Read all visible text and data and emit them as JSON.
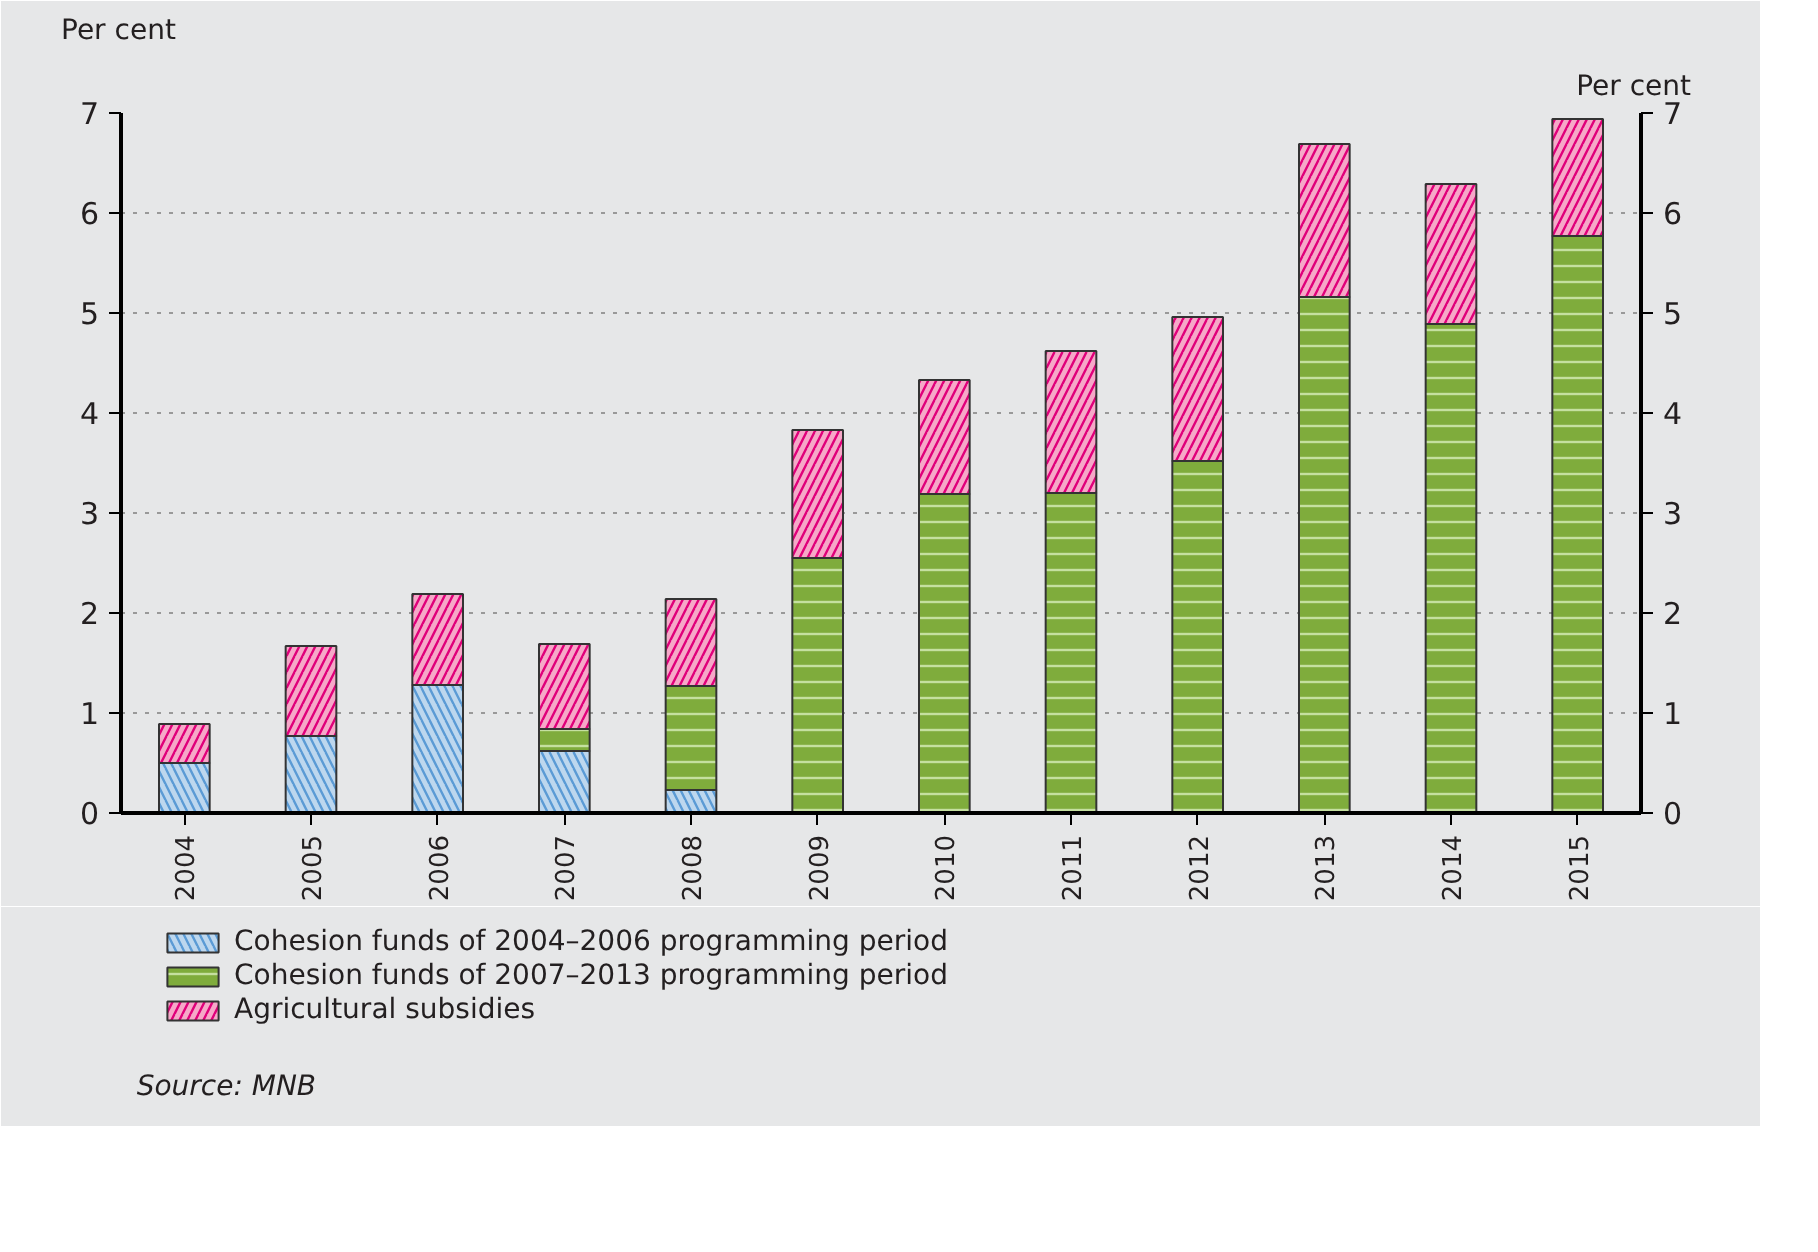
{
  "chart_data": {
    "type": "bar",
    "stacked": true,
    "categories": [
      "2004",
      "2005",
      "2006",
      "2007",
      "2008",
      "2009",
      "2010",
      "2011",
      "2012",
      "2013",
      "2014",
      "2015"
    ],
    "series": [
      {
        "name": "Cohesion funds of 2004–2006 programming period",
        "color": "#bdd7ee",
        "values": [
          0.5,
          0.77,
          1.28,
          0.62,
          0.23,
          null,
          null,
          null,
          null,
          null,
          null,
          null
        ]
      },
      {
        "name": "Cohesion funds of 2007–2013 programming period",
        "color": "#7fac3c",
        "values": [
          null,
          null,
          null,
          0.22,
          1.04,
          2.55,
          3.19,
          3.2,
          3.52,
          5.16,
          4.89,
          5.77
        ]
      },
      {
        "name": "Agricultural subsidies",
        "color": "#f6a8c8",
        "values": [
          0.39,
          0.9,
          0.91,
          0.85,
          0.87,
          1.28,
          1.14,
          1.42,
          1.44,
          1.53,
          1.4,
          1.17
        ]
      }
    ],
    "ylabel": "Per cent",
    "y2label": "Per cent",
    "ylim": [
      0,
      7
    ],
    "yticks": [
      0,
      1,
      2,
      3,
      4,
      5,
      6,
      7
    ],
    "y2lim": [
      0,
      7
    ],
    "y2ticks": [
      0,
      1,
      2,
      3,
      4,
      5,
      6,
      7
    ],
    "grid": "y",
    "legend": "bottom",
    "annotations": [
      "Source: MNB"
    ]
  }
}
